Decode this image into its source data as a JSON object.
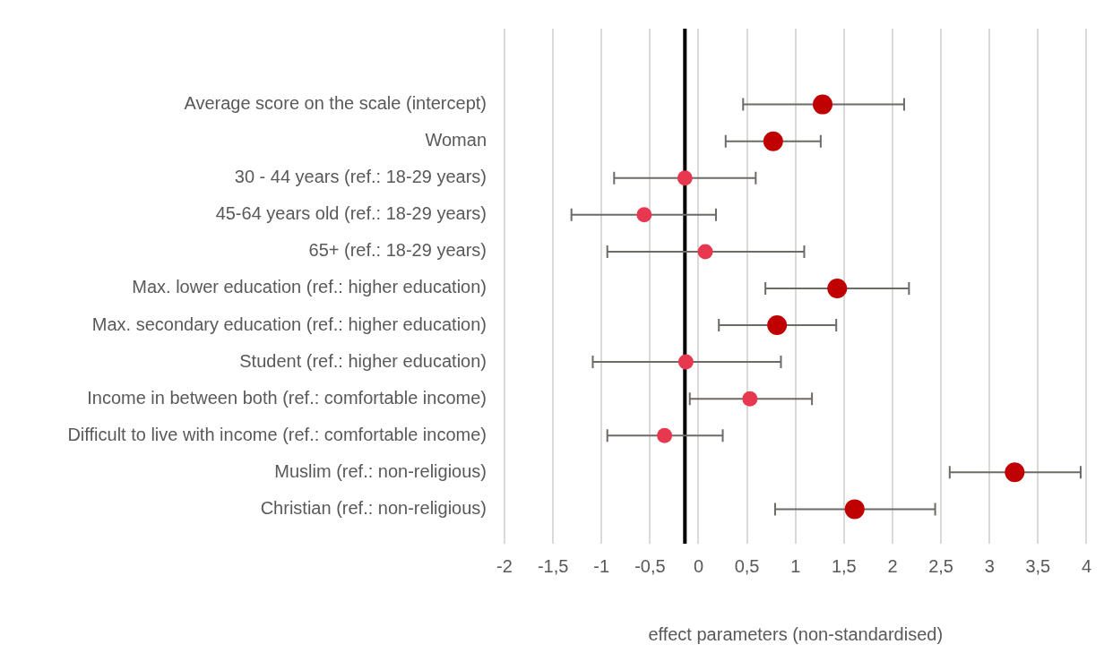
{
  "chart_data": {
    "type": "scatter",
    "orientation": "horizontal",
    "xlabel": "effect parameters (non-standardised)",
    "categories": [
      "Average score on the scale (intercept)",
      "Woman",
      "30 - 44 years (ref.: 18-29 years)",
      "45-64 years old (ref.: 18-29 years)",
      "65+ (ref.: 18-29 years)",
      "Max. lower education (ref.: higher education)",
      "Max. secondary education (ref.: higher education)",
      "Student (ref.: higher education)",
      "Income in between both (ref.: comfortable income)",
      "Difficult to live with income (ref.: comfortable income)",
      "Muslim (ref.: non-religious)",
      "Christian (ref.: non-religious)"
    ],
    "series": [
      {
        "color": "#c00000",
        "values": [
          1.28,
          0.77,
          null,
          null,
          null,
          1.43,
          0.81,
          null,
          null,
          null,
          3.26,
          1.61
        ],
        "errors": [
          [
            0.46,
            2.12
          ],
          [
            0.28,
            1.26
          ],
          null,
          null,
          null,
          [
            0.69,
            2.17
          ],
          [
            0.21,
            1.42
          ],
          null,
          null,
          null,
          [
            2.59,
            3.94
          ],
          [
            0.79,
            2.44
          ]
        ]
      },
      {
        "color": "#e8384f",
        "values": [
          null,
          null,
          -0.14,
          -0.56,
          0.07,
          null,
          null,
          -0.13,
          0.53,
          -0.35,
          null,
          null
        ],
        "errors": [
          null,
          null,
          [
            -0.87,
            0.59
          ],
          [
            -1.31,
            0.18
          ],
          [
            -0.94,
            1.09
          ],
          null,
          null,
          [
            -1.09,
            0.85
          ],
          [
            -0.09,
            1.17
          ],
          [
            -0.94,
            0.25
          ],
          null,
          null
        ]
      }
    ],
    "xlim": [
      -2,
      4
    ],
    "xticks": [
      -2,
      {
        "value": -1.5,
        "label": "-1,5"
      },
      -1,
      {
        "value": -0.5,
        "label": "-0,5"
      },
      0,
      {
        "value": 0.5,
        "label": "0,5"
      },
      1,
      {
        "value": 1.5,
        "label": "1,5"
      },
      2,
      {
        "value": 2.5,
        "label": "2,5"
      },
      3,
      {
        "value": 3.5,
        "label": "3,5"
      },
      4
    ],
    "ref_lines": [
      {
        "axis": "x",
        "value": -0.14,
        "color": "#000000"
      }
    ],
    "grid": "x",
    "legend": false,
    "marker": "circle"
  }
}
